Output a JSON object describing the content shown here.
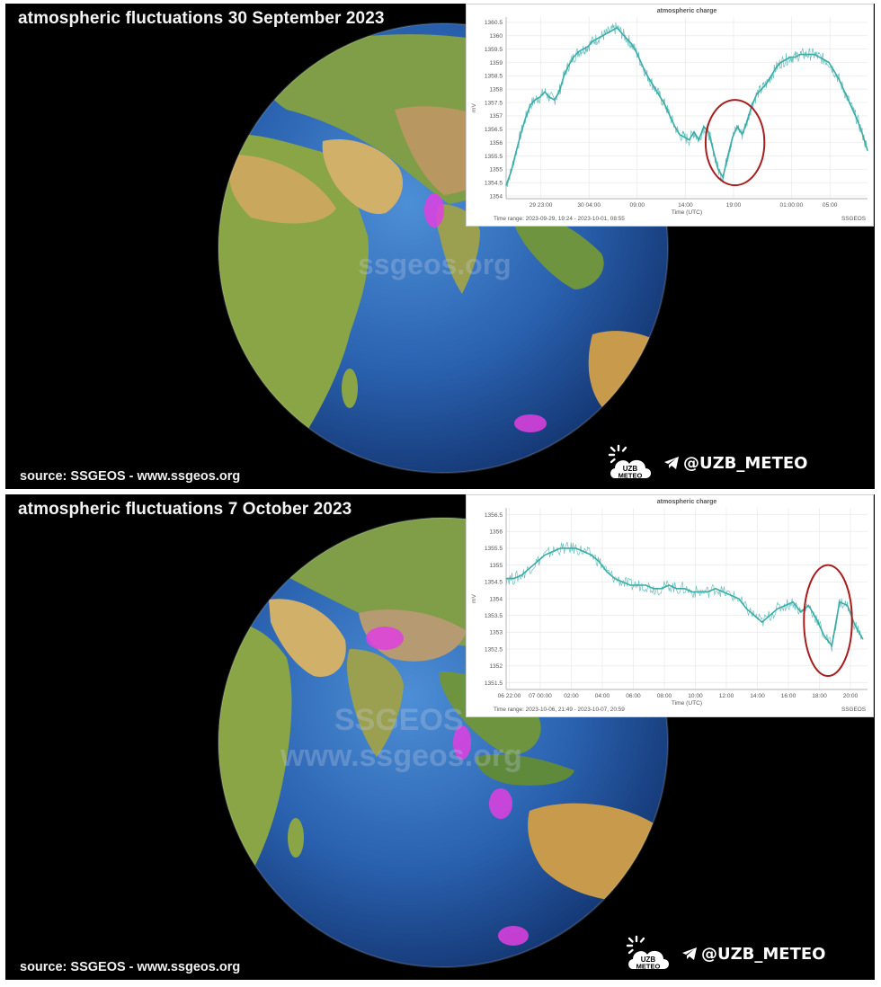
{
  "panels": [
    {
      "title": "atmospheric fluctuations 30 September 2023",
      "source": "source: SSGEOS - www.ssgeos.org",
      "watermark": "ssgeos.org",
      "telegram": "@UZB_METEO",
      "logo_text": [
        "UZB",
        "METEO"
      ]
    },
    {
      "title": "atmospheric fluctuations 7 October 2023",
      "source": "source: SSGEOS - www.ssgeos.org",
      "watermark": [
        "SSGEOS",
        "www.ssgeos.org"
      ],
      "telegram": "@UZB_METEO",
      "logo_text": [
        "UZB",
        "METEO"
      ]
    }
  ],
  "colors": {
    "series": "#3aaca7",
    "highlight": "#a81e1e",
    "marker": "#e040e0"
  },
  "chart_data": [
    {
      "type": "line",
      "title": "atmospheric charge",
      "xlabel": "Time (UTC)",
      "ylabel": "mV",
      "ylim": [
        1353.9,
        1360.7
      ],
      "yticks": [
        1354,
        1354.5,
        1355,
        1355.5,
        1356,
        1356.5,
        1357,
        1357.5,
        1358,
        1358.5,
        1359,
        1359.5,
        1360,
        1360.5
      ],
      "xlim": [
        0,
        37.5
      ],
      "xticks": [
        {
          "x": 3.6,
          "label": "29 23:00"
        },
        {
          "x": 8.6,
          "label": "30 04:00"
        },
        {
          "x": 13.6,
          "label": "09:00"
        },
        {
          "x": 18.6,
          "label": "14:00"
        },
        {
          "x": 23.6,
          "label": "19:00"
        },
        {
          "x": 29.6,
          "label": "01:00:00"
        },
        {
          "x": 33.6,
          "label": "05:00"
        }
      ],
      "series": [
        {
          "x": [
            0,
            0.5,
            1,
            1.5,
            2,
            2.5,
            3,
            3.5,
            4,
            4.5,
            5,
            5.5,
            6,
            6.5,
            7,
            7.5,
            8,
            8.5,
            9,
            9.5,
            10,
            10.5,
            11,
            11.5,
            12,
            12.5,
            13,
            13.5,
            14,
            14.5,
            15,
            15.5,
            16,
            16.5,
            17,
            17.5,
            18,
            18.5,
            19,
            19.5,
            20,
            20.5,
            21,
            21.5,
            22,
            22.5,
            23,
            23.5,
            24,
            24.5,
            25,
            25.5,
            26,
            26.5,
            27,
            27.5,
            28,
            28.5,
            29,
            29.5,
            30,
            30.5,
            31,
            31.5,
            32,
            32.5,
            33,
            33.5,
            34,
            34.5,
            35,
            35.5,
            36,
            36.5,
            37,
            37.5
          ],
          "values": [
            1354.4,
            1354.9,
            1355.6,
            1356.3,
            1356.9,
            1357.4,
            1357.6,
            1357.7,
            1357.9,
            1357.7,
            1357.6,
            1357.9,
            1358.5,
            1358.9,
            1359.2,
            1359.4,
            1359.5,
            1359.6,
            1359.8,
            1359.9,
            1360.0,
            1360.1,
            1360.2,
            1360.3,
            1360.1,
            1359.9,
            1359.7,
            1359.4,
            1359.0,
            1358.6,
            1358.3,
            1358.0,
            1357.7,
            1357.4,
            1357.0,
            1356.6,
            1356.3,
            1356.2,
            1356.1,
            1356.4,
            1356.1,
            1356.6,
            1356.4,
            1355.7,
            1355.0,
            1354.7,
            1355.5,
            1356.2,
            1356.6,
            1356.3,
            1356.8,
            1357.4,
            1357.8,
            1358.0,
            1358.2,
            1358.5,
            1358.8,
            1359.0,
            1359.1,
            1359.2,
            1359.2,
            1359.3,
            1359.3,
            1359.3,
            1359.3,
            1359.2,
            1359.1,
            1359.0,
            1358.7,
            1358.4,
            1358.0,
            1357.6,
            1357.2,
            1356.8,
            1356.3,
            1355.7
          ]
        }
      ],
      "highlight": {
        "x": [
          20.7,
          26.8
        ],
        "y": [
          1354.4,
          1357.6
        ]
      },
      "footer_left": "Time range: 2023-09-29, 19:24 - 2023-10-01, 08:55",
      "footer_right": "SSGEOS"
    },
    {
      "type": "line",
      "title": "atmospheric charge",
      "xlabel": "Time (UTC)",
      "ylabel": "mV",
      "ylim": [
        1351.3,
        1356.7
      ],
      "yticks": [
        1351.5,
        1352,
        1352.5,
        1353,
        1353.5,
        1354,
        1354.5,
        1355,
        1355.5,
        1356,
        1356.5
      ],
      "xlim": [
        0,
        23.3
      ],
      "xticks": [
        {
          "x": 0.2,
          "label": "06 22:00"
        },
        {
          "x": 2.2,
          "label": "07 00:00"
        },
        {
          "x": 4.2,
          "label": "02:00"
        },
        {
          "x": 6.2,
          "label": "04:00"
        },
        {
          "x": 8.2,
          "label": "06:00"
        },
        {
          "x": 10.2,
          "label": "08:00"
        },
        {
          "x": 12.2,
          "label": "10:00"
        },
        {
          "x": 14.2,
          "label": "12:00"
        },
        {
          "x": 16.2,
          "label": "14:00"
        },
        {
          "x": 18.2,
          "label": "16:00"
        },
        {
          "x": 20.2,
          "label": "18:00"
        },
        {
          "x": 22.2,
          "label": "20:00"
        }
      ],
      "series": [
        {
          "x": [
            0,
            0.5,
            1,
            1.5,
            2,
            2.5,
            3,
            3.5,
            4,
            4.5,
            5,
            5.5,
            6,
            6.5,
            7,
            7.5,
            8,
            8.5,
            9,
            9.5,
            10,
            10.5,
            11,
            11.5,
            12,
            12.5,
            13,
            13.5,
            14,
            14.5,
            15,
            15.5,
            16,
            16.5,
            17,
            17.5,
            18,
            18.5,
            19,
            19.5,
            20,
            20.5,
            21,
            21.5,
            22,
            22.5,
            23
          ],
          "values": [
            1354.6,
            1354.6,
            1354.7,
            1354.9,
            1355.1,
            1355.3,
            1355.4,
            1355.5,
            1355.5,
            1355.5,
            1355.4,
            1355.3,
            1355.1,
            1354.8,
            1354.6,
            1354.5,
            1354.4,
            1354.4,
            1354.4,
            1354.3,
            1354.3,
            1354.4,
            1354.3,
            1354.3,
            1354.2,
            1354.2,
            1354.2,
            1354.3,
            1354.2,
            1354.1,
            1354.0,
            1353.7,
            1353.5,
            1353.3,
            1353.5,
            1353.7,
            1353.8,
            1353.9,
            1353.6,
            1353.8,
            1353.4,
            1352.9,
            1352.6,
            1353.9,
            1353.8,
            1353.2,
            1352.8
          ]
        }
      ],
      "highlight": {
        "x": [
          19.2,
          22.3
        ],
        "y": [
          1351.7,
          1355.0
        ]
      },
      "footer_left": "Time range: 2023-10-06, 21:49 - 2023-10-07, 20:59",
      "footer_right": "SSGEOS"
    }
  ]
}
